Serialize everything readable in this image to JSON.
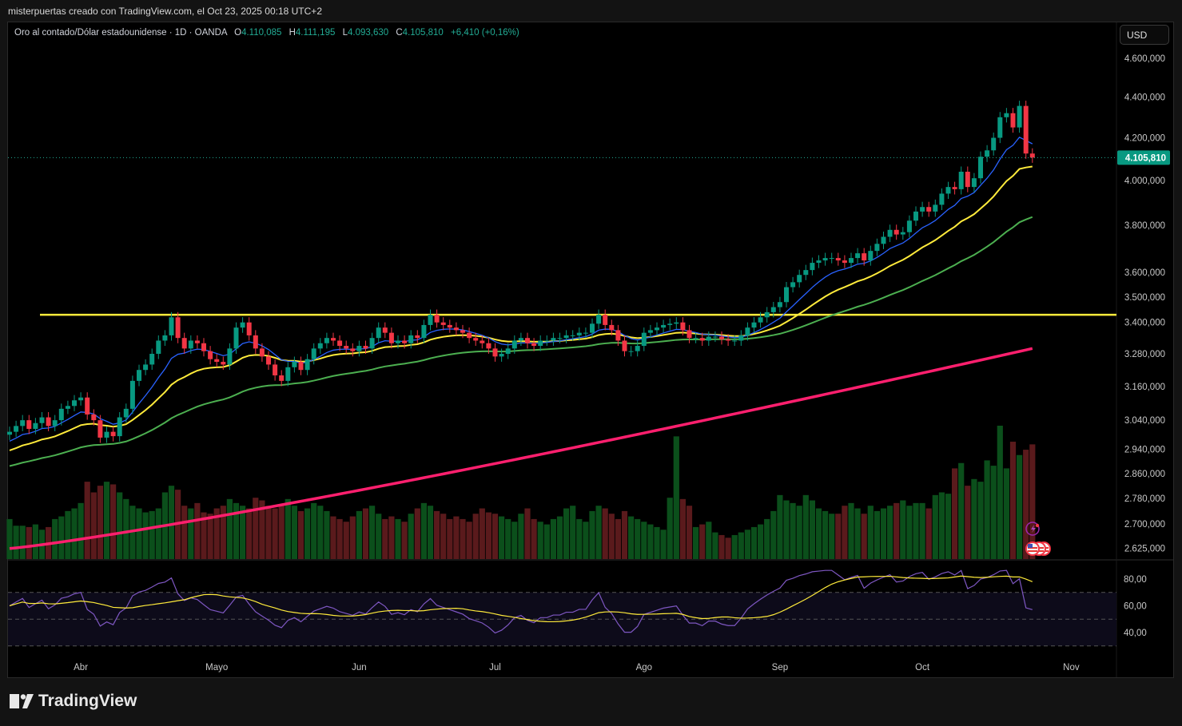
{
  "header": {
    "attribution": "misterpuertas creado con TradingView.com, el Oct 23, 2025 00:18 UTC+2"
  },
  "legend": {
    "symbol": "Oro al contado/Dólar estadounidense · 1D · OANDA",
    "o_label": "O",
    "o": "4.110,085",
    "h_label": "H",
    "h": "4.111,195",
    "l_label": "L",
    "l": "4.093,630",
    "c_label": "C",
    "c": "4.105,810",
    "change": "+6,410 (+0,16%)"
  },
  "currency_button": "USD",
  "logo_text": "TradingView",
  "colors": {
    "up": "#089981",
    "down": "#f23645",
    "ema_fast": "#2962ff",
    "ema_mid": "#ffeb3b",
    "ema_slow": "#4caf50",
    "ma_long": "#ff1f6e",
    "level": "#ffeb3b",
    "rsi": "#7e57c2",
    "rsi_ma": "#ffeb3b"
  },
  "chart_data": {
    "type": "candlestick",
    "scale": "log",
    "ylim": [
      2600,
      4700
    ],
    "price_ticks": [
      "4.600,000",
      "4.400,000",
      "4.200,000",
      "4.000,000",
      "3.800,000",
      "3.600,000",
      "3.500,000",
      "3.400,000",
      "3.280,000",
      "3.160,000",
      "3.040,000",
      "2.940,000",
      "2.860,000",
      "2.780,000",
      "2.700,000",
      "2.625,000"
    ],
    "price_tick_values": [
      4600,
      4400,
      4200,
      4000,
      3800,
      3600,
      3500,
      3400,
      3280,
      3160,
      3040,
      2940,
      2860,
      2780,
      2700,
      2625
    ],
    "last_price": 4105.81,
    "last_price_label": "4.105,810",
    "horizontal_level": 3430,
    "x_labels": [
      "Abr",
      "Mayo",
      "Jun",
      "Jul",
      "Ago",
      "Sep",
      "Oct",
      "Nov"
    ],
    "x_label_index": [
      11,
      32,
      54,
      75,
      98,
      119,
      141,
      164
    ],
    "closes": [
      3000,
      3020,
      3040,
      3010,
      3030,
      3050,
      3020,
      3040,
      3080,
      3090,
      3110,
      3120,
      3060,
      3040,
      2980,
      3000,
      2985,
      3050,
      3080,
      3180,
      3220,
      3240,
      3280,
      3330,
      3350,
      3420,
      3340,
      3300,
      3330,
      3320,
      3290,
      3260,
      3250,
      3240,
      3300,
      3380,
      3400,
      3350,
      3300,
      3270,
      3240,
      3200,
      3180,
      3230,
      3250,
      3220,
      3260,
      3300,
      3320,
      3340,
      3330,
      3310,
      3300,
      3290,
      3310,
      3300,
      3340,
      3380,
      3360,
      3320,
      3330,
      3320,
      3350,
      3340,
      3390,
      3430,
      3400,
      3390,
      3380,
      3370,
      3360,
      3340,
      3330,
      3320,
      3300,
      3270,
      3280,
      3300,
      3330,
      3340,
      3320,
      3310,
      3330,
      3330,
      3340,
      3340,
      3350,
      3350,
      3360,
      3360,
      3395,
      3430,
      3390,
      3370,
      3330,
      3290,
      3290,
      3310,
      3360,
      3370,
      3380,
      3390,
      3395,
      3400,
      3370,
      3340,
      3340,
      3330,
      3345,
      3345,
      3335,
      3330,
      3330,
      3350,
      3380,
      3400,
      3420,
      3440,
      3460,
      3480,
      3540,
      3560,
      3590,
      3610,
      3640,
      3650,
      3660,
      3660,
      3650,
      3640,
      3660,
      3680,
      3650,
      3690,
      3720,
      3750,
      3780,
      3760,
      3770,
      3820,
      3860,
      3880,
      3860,
      3890,
      3940,
      3970,
      3960,
      4040,
      3970,
      4010,
      4110,
      4140,
      4200,
      4300,
      4320,
      4250,
      4356,
      4125,
      4106
    ],
    "volumes": [
      30,
      25,
      25,
      24,
      26,
      22,
      24,
      30,
      32,
      36,
      38,
      42,
      58,
      50,
      55,
      58,
      56,
      50,
      45,
      40,
      38,
      35,
      36,
      38,
      50,
      55,
      52,
      40,
      38,
      42,
      35,
      34,
      38,
      40,
      45,
      42,
      40,
      38,
      46,
      44,
      40,
      38,
      40,
      45,
      40,
      36,
      38,
      42,
      40,
      36,
      32,
      30,
      28,
      32,
      36,
      38,
      40,
      34,
      30,
      32,
      30,
      28,
      34,
      38,
      42,
      40,
      36,
      34,
      30,
      32,
      30,
      28,
      34,
      38,
      35,
      34,
      32,
      30,
      28,
      34,
      38,
      30,
      28,
      26,
      30,
      32,
      38,
      40,
      30,
      28,
      36,
      40,
      38,
      34,
      30,
      36,
      32,
      30,
      28,
      26,
      24,
      22,
      46,
      92,
      45,
      40,
      24,
      26,
      28,
      20,
      18,
      16,
      18,
      20,
      22,
      24,
      26,
      30,
      36,
      48,
      44,
      42,
      40,
      48,
      44,
      38,
      36,
      34,
      34,
      40,
      42,
      38,
      34,
      40,
      36,
      38,
      40,
      42,
      44,
      40,
      42,
      42,
      38,
      48,
      50,
      49,
      68,
      72,
      55,
      60,
      58,
      74,
      70,
      100,
      68,
      88,
      78,
      82,
      86
    ],
    "ema_seeds": {
      "fast": 2960,
      "mid": 2930,
      "slow": 2880
    },
    "ma_long_range": [
      2625,
      3300
    ],
    "rsi": {
      "ticks": [
        "80,00",
        "60,00",
        "40,00"
      ],
      "tick_values": [
        80,
        60,
        40
      ],
      "bands": [
        70,
        50,
        30
      ]
    }
  }
}
